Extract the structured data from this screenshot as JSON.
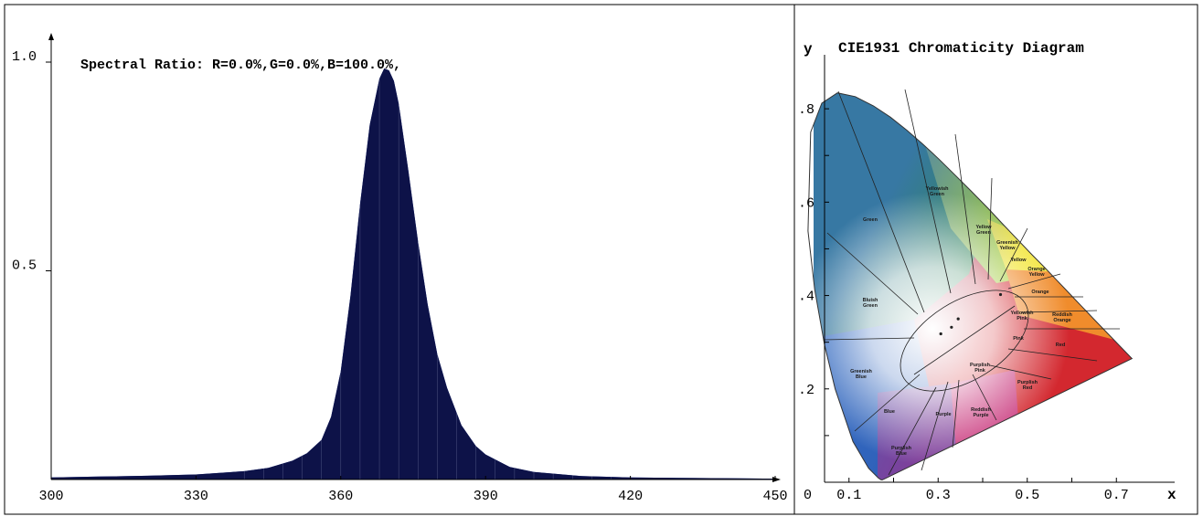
{
  "spectrum_panel": {
    "ratio_text": "Spectral Ratio:  R=0.0%,G=0.0%,B=100.0%,",
    "fill_color": "#0d1248",
    "tail_color": "#1f3aa8"
  },
  "chromaticity_panel": {
    "title": "CIE1931 Chromaticity Diagram",
    "x_axis_label": "x",
    "y_axis_label": "y",
    "origin_label": "0",
    "region_labels": [
      "Yellowish Green",
      "Green",
      "Yellow Green",
      "Greenish Yellow",
      "Yellow",
      "Orange Yellow",
      "Orange",
      "Bluish Green",
      "Yellowish Pink",
      "Reddish Orange",
      "Pink",
      "Red",
      "Greenish Blue",
      "Purplish Pink",
      "Purplish Red",
      "Blue",
      "Purple",
      "Reddish Purple",
      "Purplish Blue"
    ]
  },
  "chart_data": [
    {
      "type": "area",
      "title": "Spectral Ratio:  R=0.0%,G=0.0%,B=100.0%,",
      "xlabel": "",
      "ylabel": "",
      "xlim": [
        300,
        450
      ],
      "ylim": [
        0,
        1.0
      ],
      "x_ticks": [
        "300",
        "330",
        "360",
        "390",
        "420",
        "450"
      ],
      "y_ticks": [
        "0.5",
        "1.0"
      ],
      "grid": false,
      "series": [
        {
          "x": [
            300,
            310,
            320,
            330,
            340,
            345,
            350,
            353,
            356,
            358,
            360,
            362,
            364,
            366,
            368,
            369,
            370,
            371,
            372,
            374,
            376,
            378,
            380,
            382,
            385,
            388,
            390,
            395,
            400,
            410,
            420,
            430,
            440,
            450
          ],
          "values": [
            0.005,
            0.007,
            0.009,
            0.012,
            0.02,
            0.028,
            0.045,
            0.063,
            0.095,
            0.15,
            0.26,
            0.44,
            0.66,
            0.85,
            0.96,
            0.985,
            0.98,
            0.955,
            0.9,
            0.74,
            0.57,
            0.42,
            0.3,
            0.22,
            0.13,
            0.08,
            0.06,
            0.03,
            0.018,
            0.008,
            0.005,
            0.004,
            0.003,
            0.002
          ]
        }
      ]
    },
    {
      "type": "scatter",
      "title": "CIE1931 Chromaticity Diagram",
      "xlabel": "x",
      "ylabel": "y",
      "xlim": [
        0,
        0.8
      ],
      "ylim": [
        0,
        0.9
      ],
      "x_ticks": [
        "0.1",
        "0.3",
        "0.5",
        "0.7"
      ],
      "y_ticks": [
        ".2",
        ".4",
        ".6",
        ".8"
      ],
      "grid": false,
      "spectral_locus": {
        "x": [
          0.175,
          0.172,
          0.166,
          0.144,
          0.109,
          0.069,
          0.045,
          0.023,
          0.008,
          0.014,
          0.039,
          0.074,
          0.114,
          0.155,
          0.193,
          0.23,
          0.266,
          0.302,
          0.337,
          0.374,
          0.412,
          0.448,
          0.479,
          0.508,
          0.537,
          0.563,
          0.585,
          0.604,
          0.621,
          0.635,
          0.645,
          0.735
        ],
        "y": [
          0.005,
          0.005,
          0.009,
          0.03,
          0.087,
          0.2,
          0.295,
          0.413,
          0.538,
          0.75,
          0.812,
          0.834,
          0.826,
          0.806,
          0.782,
          0.754,
          0.724,
          0.692,
          0.659,
          0.624,
          0.587,
          0.55,
          0.519,
          0.49,
          0.462,
          0.436,
          0.414,
          0.395,
          0.378,
          0.364,
          0.354,
          0.265
        ]
      },
      "points": [
        {
          "x": 0.306,
          "y": 0.318
        },
        {
          "x": 0.33,
          "y": 0.332
        },
        {
          "x": 0.345,
          "y": 0.35
        },
        {
          "x": 0.44,
          "y": 0.402
        }
      ]
    }
  ]
}
